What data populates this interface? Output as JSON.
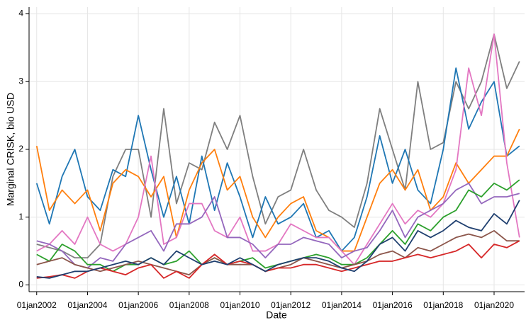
{
  "chart_data": {
    "type": "line",
    "xlabel": "Date",
    "ylabel": "Marginal CRISK, bio USD",
    "x": [
      2002,
      2002.5,
      2003,
      2003.5,
      2004,
      2004.5,
      2005,
      2005.5,
      2006,
      2006.5,
      2007,
      2007.5,
      2008,
      2008.5,
      2009,
      2009.5,
      2010,
      2010.5,
      2011,
      2011.5,
      2012,
      2012.5,
      2013,
      2013.5,
      2014,
      2014.5,
      2015,
      2015.5,
      2016,
      2016.5,
      2017,
      2017.5,
      2018,
      2018.5,
      2019,
      2019.5,
      2020,
      2020.5,
      2021
    ],
    "xlim": [
      2001.7,
      2021.2
    ],
    "xticks": [
      {
        "value": 2002,
        "label": "01jan2002"
      },
      {
        "value": 2004,
        "label": "01jan2004"
      },
      {
        "value": 2006,
        "label": "01jan2006"
      },
      {
        "value": 2008,
        "label": "01jan2008"
      },
      {
        "value": 2010,
        "label": "01jan2010"
      },
      {
        "value": 2012,
        "label": "01jan2012"
      },
      {
        "value": 2014,
        "label": "01jan2014"
      },
      {
        "value": 2016,
        "label": "01jan2016"
      },
      {
        "value": 2018,
        "label": "01jan2018"
      },
      {
        "value": 2020,
        "label": "01jan2020"
      }
    ],
    "ylim": [
      -0.1,
      4.1
    ],
    "yticks": [
      0,
      1,
      2,
      3,
      4
    ],
    "grid": true,
    "series": [
      {
        "color": "#7f7f7f",
        "values": [
          0.6,
          0.55,
          0.5,
          0.4,
          0.4,
          0.6,
          1.6,
          2.0,
          2.0,
          1.0,
          2.6,
          1.2,
          1.8,
          1.7,
          2.4,
          2.0,
          2.5,
          1.6,
          0.9,
          1.3,
          1.4,
          2.0,
          1.4,
          1.1,
          1.0,
          0.85,
          1.5,
          2.6,
          2.0,
          1.4,
          3.0,
          2.0,
          2.1,
          3.0,
          2.6,
          3.0,
          3.7,
          2.9,
          3.3
        ]
      },
      {
        "color": "#1f77b4",
        "values": [
          1.5,
          0.9,
          1.6,
          2.0,
          1.3,
          1.1,
          1.7,
          1.6,
          2.5,
          1.7,
          1.0,
          1.6,
          0.9,
          1.9,
          1.1,
          1.8,
          1.3,
          0.7,
          1.3,
          0.9,
          1.0,
          1.2,
          0.7,
          0.8,
          0.5,
          0.7,
          1.3,
          2.2,
          1.5,
          2.0,
          1.4,
          1.2,
          2.0,
          3.2,
          2.3,
          2.7,
          3.0,
          1.9,
          2.05
        ]
      },
      {
        "color": "#ff7f0e",
        "values": [
          2.05,
          1.1,
          1.4,
          1.2,
          1.4,
          0.8,
          1.5,
          1.7,
          1.6,
          1.3,
          1.6,
          0.7,
          1.4,
          1.8,
          2.0,
          1.4,
          1.6,
          1.0,
          0.7,
          1.0,
          1.2,
          1.3,
          0.8,
          0.7,
          0.5,
          0.5,
          1.0,
          1.5,
          1.7,
          1.4,
          1.7,
          1.1,
          1.3,
          1.8,
          1.5,
          1.7,
          1.9,
          1.9,
          2.3
        ]
      },
      {
        "color": "#e377c2",
        "values": [
          0.5,
          0.6,
          0.8,
          0.6,
          1.0,
          0.6,
          0.5,
          0.6,
          1.0,
          1.9,
          0.6,
          0.7,
          1.2,
          1.2,
          0.8,
          0.7,
          1.0,
          0.5,
          0.5,
          0.6,
          0.9,
          0.8,
          0.7,
          0.7,
          0.5,
          0.3,
          0.6,
          0.9,
          1.2,
          0.9,
          1.1,
          1.0,
          1.2,
          1.7,
          3.2,
          2.5,
          3.7,
          1.8,
          0.7
        ]
      },
      {
        "color": "#9467bd",
        "values": [
          0.65,
          0.6,
          0.5,
          0.3,
          0.25,
          0.4,
          0.35,
          0.6,
          0.7,
          0.8,
          0.5,
          0.9,
          0.9,
          1.0,
          1.3,
          0.7,
          0.7,
          0.6,
          0.4,
          0.6,
          0.6,
          0.7,
          0.65,
          0.6,
          0.4,
          0.5,
          0.55,
          0.8,
          1.1,
          0.7,
          1.0,
          1.1,
          1.2,
          1.4,
          1.5,
          1.2,
          1.3,
          1.3,
          1.35
        ]
      },
      {
        "color": "#2ca02c",
        "values": [
          0.45,
          0.35,
          0.6,
          0.5,
          0.3,
          0.3,
          0.2,
          0.3,
          0.3,
          0.4,
          0.3,
          0.35,
          0.5,
          0.3,
          0.4,
          0.3,
          0.35,
          0.4,
          0.25,
          0.3,
          0.35,
          0.4,
          0.45,
          0.4,
          0.3,
          0.3,
          0.4,
          0.6,
          0.8,
          0.6,
          0.9,
          0.8,
          1.0,
          1.1,
          1.4,
          1.3,
          1.5,
          1.4,
          1.55
        ]
      },
      {
        "color": "#8c564b",
        "values": [
          0.3,
          0.35,
          0.4,
          0.3,
          0.25,
          0.2,
          0.25,
          0.3,
          0.35,
          0.3,
          0.25,
          0.2,
          0.15,
          0.3,
          0.4,
          0.3,
          0.3,
          0.3,
          0.2,
          0.25,
          0.3,
          0.4,
          0.35,
          0.3,
          0.25,
          0.3,
          0.35,
          0.45,
          0.5,
          0.4,
          0.55,
          0.5,
          0.6,
          0.7,
          0.75,
          0.7,
          0.8,
          0.65,
          0.65
        ]
      },
      {
        "color": "#d62728",
        "values": [
          0.1,
          0.12,
          0.15,
          0.1,
          0.2,
          0.25,
          0.2,
          0.15,
          0.25,
          0.3,
          0.1,
          0.2,
          0.1,
          0.3,
          0.45,
          0.3,
          0.35,
          0.3,
          0.2,
          0.25,
          0.25,
          0.3,
          0.3,
          0.25,
          0.2,
          0.25,
          0.3,
          0.35,
          0.35,
          0.4,
          0.45,
          0.4,
          0.45,
          0.5,
          0.6,
          0.4,
          0.6,
          0.55,
          0.65
        ]
      },
      {
        "color": "#1f3f6f",
        "values": [
          0.12,
          0.1,
          0.15,
          0.2,
          0.2,
          0.25,
          0.3,
          0.35,
          0.3,
          0.4,
          0.3,
          0.5,
          0.4,
          0.3,
          0.35,
          0.3,
          0.4,
          0.3,
          0.2,
          0.3,
          0.35,
          0.4,
          0.4,
          0.35,
          0.25,
          0.2,
          0.35,
          0.6,
          0.7,
          0.5,
          0.8,
          0.7,
          0.8,
          0.95,
          0.85,
          0.8,
          1.05,
          0.9,
          1.25
        ]
      }
    ]
  }
}
